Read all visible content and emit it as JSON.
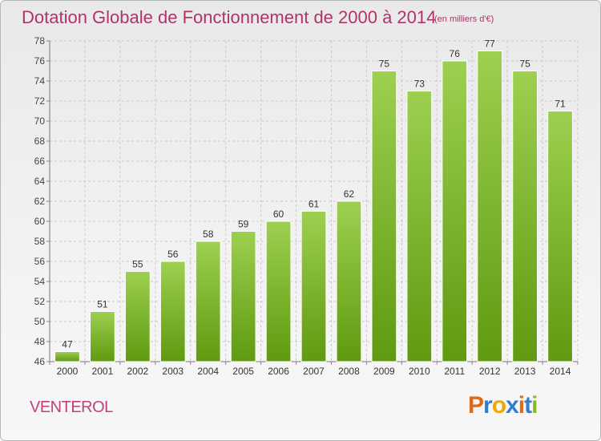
{
  "header": {
    "title": "Dotation Globale de Fonctionnement de 2000 à 2014",
    "unit": "(en milliers d'€)"
  },
  "commune": "VENTEROL",
  "logo": {
    "text": "Proxiti",
    "letters": [
      "P",
      "r",
      "o",
      "x",
      "i",
      "t",
      "i"
    ],
    "letter_colors": [
      "#e06a16",
      "#2f7fd0",
      "#f0a800",
      "#2f7fd0",
      "#e06a16",
      "#2f7fd0",
      "#8ab820"
    ]
  },
  "colors": {
    "bar_top": "#9dd04f",
    "bar_bottom": "#5f9a10",
    "grid": "#c8c8c8",
    "title": "#b0336a"
  },
  "chart_data": {
    "type": "bar",
    "title": "Dotation Globale de Fonctionnement de 2000 à 2014",
    "subtitle": "(en milliers d'€)",
    "xlabel": "",
    "ylabel": "",
    "categories": [
      "2000",
      "2001",
      "2002",
      "2003",
      "2004",
      "2005",
      "2006",
      "2007",
      "2008",
      "2009",
      "2010",
      "2011",
      "2012",
      "2013",
      "2014"
    ],
    "values": [
      47,
      51,
      55,
      56,
      58,
      59,
      60,
      61,
      62,
      75,
      73,
      76,
      77,
      75,
      71
    ],
    "ylim": [
      46,
      78
    ],
    "yticks": [
      46,
      48,
      50,
      52,
      54,
      56,
      58,
      60,
      62,
      64,
      66,
      68,
      70,
      72,
      74,
      76,
      78
    ],
    "grid": true,
    "legend": "none"
  }
}
